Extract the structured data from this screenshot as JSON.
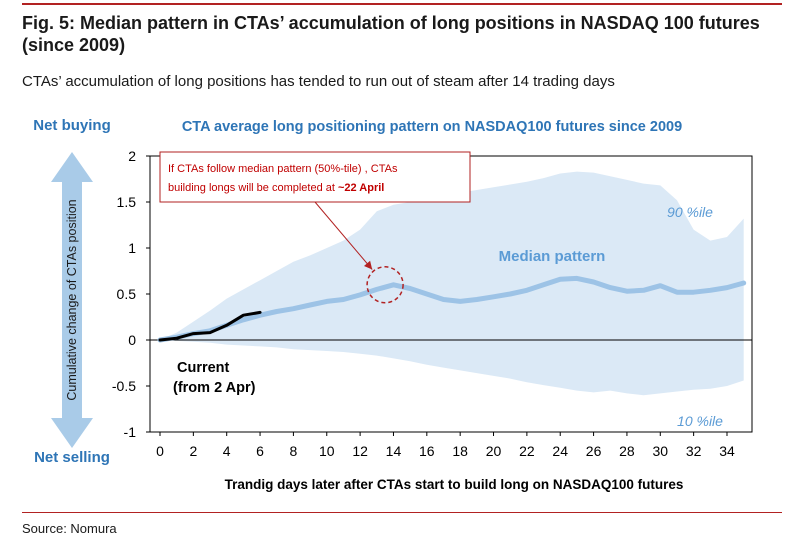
{
  "figure": {
    "title": "Fig. 5: Median pattern in CTAs’ accumulation of long positions in NASDAQ 100 futures (since 2009)",
    "subtitle": "CTAs’ accumulation of long positions has tended to run out of steam after 14 trading days",
    "source": "Source: Nomura"
  },
  "colors": {
    "accent_red": "#b22222",
    "title_blue": "#2e75b6",
    "band": "#dbe9f6",
    "median": "#9dc3e6",
    "current": "#000000",
    "arrow_blue": "#a9cbe8"
  },
  "chart_data": {
    "type": "line",
    "title": "CTA average long positioning pattern on NASDAQ100 futures since 2009",
    "xlabel": "Trandig days later after CTAs start to build long on NASDAQ100 futures",
    "ylabel": "Cumulative change of CTAs position",
    "xlim": [
      0,
      35.5
    ],
    "ylim": [
      -1,
      2
    ],
    "x_ticks": [
      0,
      2,
      4,
      6,
      8,
      10,
      12,
      14,
      16,
      18,
      20,
      22,
      24,
      26,
      28,
      30,
      32,
      34
    ],
    "y_ticks": [
      2,
      1.5,
      1,
      0.5,
      0,
      -0.5,
      -1
    ],
    "y_tick_labels": [
      "2",
      "1.5",
      "1",
      "0.5",
      "0",
      "-0.5",
      "-1"
    ],
    "y_top_annotation": "Net buying",
    "y_bottom_annotation": "Net selling",
    "series": [
      {
        "name": "Median pattern",
        "x": [
          0,
          1,
          2,
          3,
          4,
          5,
          6,
          7,
          8,
          9,
          10,
          11,
          12,
          13,
          14,
          15,
          16,
          17,
          18,
          19,
          20,
          21,
          22,
          23,
          24,
          25,
          26,
          27,
          28,
          29,
          30,
          31,
          32,
          33,
          34,
          35
        ],
        "y": [
          0,
          0.03,
          0.07,
          0.1,
          0.16,
          0.22,
          0.27,
          0.31,
          0.34,
          0.38,
          0.42,
          0.44,
          0.49,
          0.55,
          0.6,
          0.56,
          0.5,
          0.44,
          0.42,
          0.44,
          0.47,
          0.5,
          0.54,
          0.6,
          0.66,
          0.67,
          0.63,
          0.57,
          0.53,
          0.54,
          0.59,
          0.52,
          0.52,
          0.54,
          0.57,
          0.62
        ]
      },
      {
        "name": "Current (from 2 Apr)",
        "x": [
          0,
          1,
          2,
          3,
          4,
          5,
          6
        ],
        "y": [
          0,
          0.02,
          0.07,
          0.08,
          0.16,
          0.27,
          0.3
        ]
      }
    ],
    "band": {
      "name": "10 %ile to 90 %ile range",
      "x": [
        0,
        1,
        2,
        3,
        4,
        5,
        6,
        7,
        8,
        9,
        10,
        11,
        12,
        13,
        14,
        15,
        16,
        17,
        18,
        19,
        20,
        21,
        22,
        23,
        24,
        25,
        26,
        27,
        28,
        29,
        30,
        31,
        32,
        33,
        34,
        35
      ],
      "upper": [
        0,
        0.08,
        0.2,
        0.32,
        0.45,
        0.55,
        0.65,
        0.75,
        0.85,
        0.92,
        1.0,
        1.08,
        1.2,
        1.4,
        1.47,
        1.5,
        1.53,
        1.56,
        1.6,
        1.63,
        1.66,
        1.69,
        1.72,
        1.76,
        1.81,
        1.83,
        1.82,
        1.78,
        1.74,
        1.7,
        1.68,
        1.52,
        1.2,
        1.08,
        1.12,
        1.32
      ],
      "lower": [
        0,
        -0.01,
        -0.02,
        -0.03,
        -0.05,
        -0.06,
        -0.07,
        -0.08,
        -0.1,
        -0.11,
        -0.12,
        -0.13,
        -0.15,
        -0.17,
        -0.2,
        -0.23,
        -0.27,
        -0.3,
        -0.33,
        -0.36,
        -0.39,
        -0.42,
        -0.46,
        -0.49,
        -0.52,
        -0.55,
        -0.57,
        -0.55,
        -0.58,
        -0.6,
        -0.58,
        -0.56,
        -0.54,
        -0.53,
        -0.5,
        -0.44
      ]
    },
    "labels": {
      "median": "Median pattern",
      "p90": "90 %ile",
      "p10": "10 %ile",
      "current_line1": "Current",
      "current_line2": "(from 2 Apr)"
    },
    "callout": {
      "line1": "If CTAs follow median pattern (50%-tile) , CTAs",
      "line2_prefix": "building longs will be completed at ",
      "line2_emph": "~22 April",
      "target_x": 13.5,
      "target_y": 0.6
    }
  }
}
